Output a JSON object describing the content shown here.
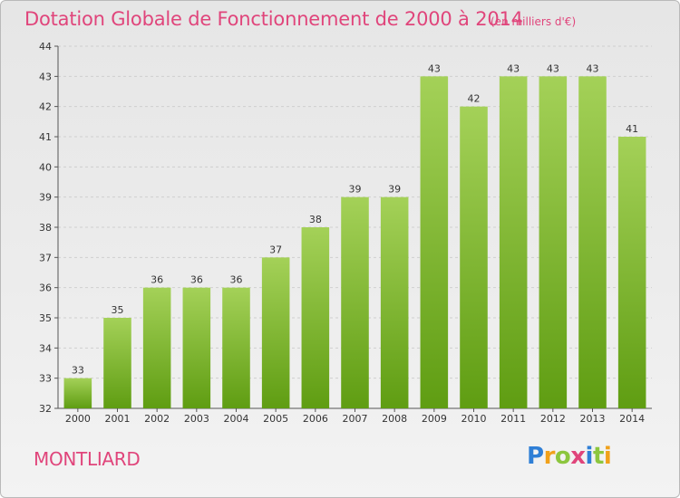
{
  "title": "Dotation Globale de Fonctionnement de 2000 à 2014",
  "subtitle": "(en milliers d'€)",
  "commune": "MONTLIARD",
  "logo": {
    "text": "Proxiti",
    "colors": [
      "#2f7fd6",
      "#f0a11b",
      "#8cc63e",
      "#e0457b",
      "#2f7fd6",
      "#8cc63e",
      "#f0a11b"
    ]
  },
  "colors": {
    "accent": "#e0457b",
    "bar_top": "#a4d158",
    "bar_bottom": "#5f9d12",
    "grid": "#cfcfcf"
  },
  "chart_data": {
    "type": "bar",
    "title": "Dotation Globale de Fonctionnement de 2000 à 2014",
    "subtitle": "(en milliers d'€)",
    "categories": [
      "2000",
      "2001",
      "2002",
      "2003",
      "2004",
      "2005",
      "2006",
      "2007",
      "2008",
      "2009",
      "2010",
      "2011",
      "2012",
      "2013",
      "2014"
    ],
    "values": [
      33,
      35,
      36,
      36,
      36,
      37,
      38,
      39,
      39,
      43,
      42,
      43,
      43,
      43,
      41
    ],
    "ylim": [
      32,
      44
    ],
    "yticks": [
      32,
      33,
      34,
      35,
      36,
      37,
      38,
      39,
      40,
      41,
      42,
      43,
      44
    ],
    "grid": "horizontal dashed",
    "data_labels": true
  }
}
